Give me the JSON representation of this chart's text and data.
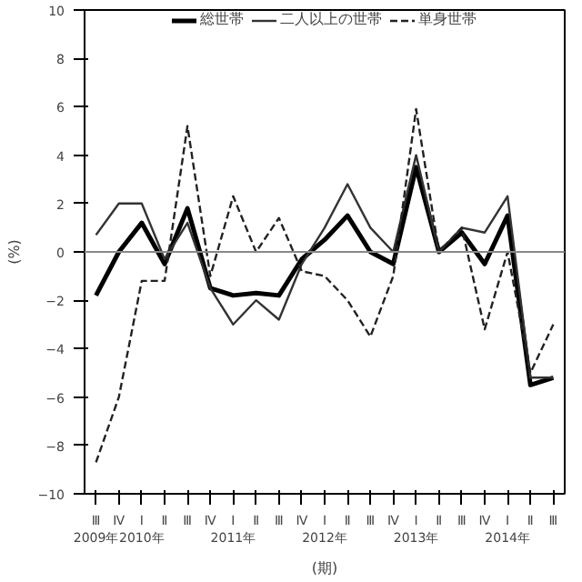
{
  "chart_data": {
    "type": "line",
    "ylabel": "(%)",
    "xlabel": "(期)",
    "categories": [
      "Ⅲ\n2009年",
      "Ⅳ",
      "Ⅰ\n2010年",
      "Ⅱ",
      "Ⅲ",
      "Ⅳ",
      "Ⅰ\n2011年",
      "Ⅱ",
      "Ⅲ",
      "Ⅳ",
      "Ⅰ\n2012年",
      "Ⅱ",
      "Ⅲ",
      "Ⅳ",
      "Ⅰ\n2013年",
      "Ⅱ",
      "Ⅲ",
      "Ⅳ",
      "Ⅰ\n2014年",
      "Ⅱ",
      "Ⅲ"
    ],
    "series": [
      {
        "name": "総世帯",
        "color": "#000000",
        "line_style": "solid",
        "values": [
          -1.8,
          0,
          1.2,
          -0.5,
          1.8,
          -1.5,
          -1.8,
          -1.7,
          -1.8,
          -0.3,
          0.5,
          1.5,
          0,
          -0.5,
          3.5,
          0,
          0.8,
          -0.5,
          1.5,
          -5.5,
          -5.2
        ]
      },
      {
        "name": "二人以上の世帯",
        "color": "#333333",
        "line_style": "solid",
        "values": [
          0.7,
          2,
          2,
          -0.3,
          1.2,
          -1.5,
          -3,
          -2,
          -2.8,
          -0.5,
          1,
          2.8,
          1,
          0,
          4,
          0,
          1,
          0.8,
          2.3,
          -5.2,
          -5.2
        ]
      },
      {
        "name": "単身世帯",
        "color": "#222222",
        "line_style": "dashed",
        "values": [
          -8.7,
          -6,
          -1.2,
          -1.2,
          5.2,
          -1,
          2.3,
          0,
          1.4,
          -0.8,
          -1,
          -2,
          -3.5,
          -1,
          5.9,
          0,
          1,
          -3.2,
          0,
          -5,
          -3
        ]
      }
    ],
    "ylim": [
      -10,
      10
    ],
    "yticks": [
      -10,
      -8,
      -6,
      -4,
      -2,
      0,
      2,
      4,
      6,
      8,
      10
    ],
    "ref_lines": [
      {
        "axis": "y",
        "value": 0,
        "color": "#888888"
      }
    ],
    "legend": "top",
    "grid": false
  }
}
